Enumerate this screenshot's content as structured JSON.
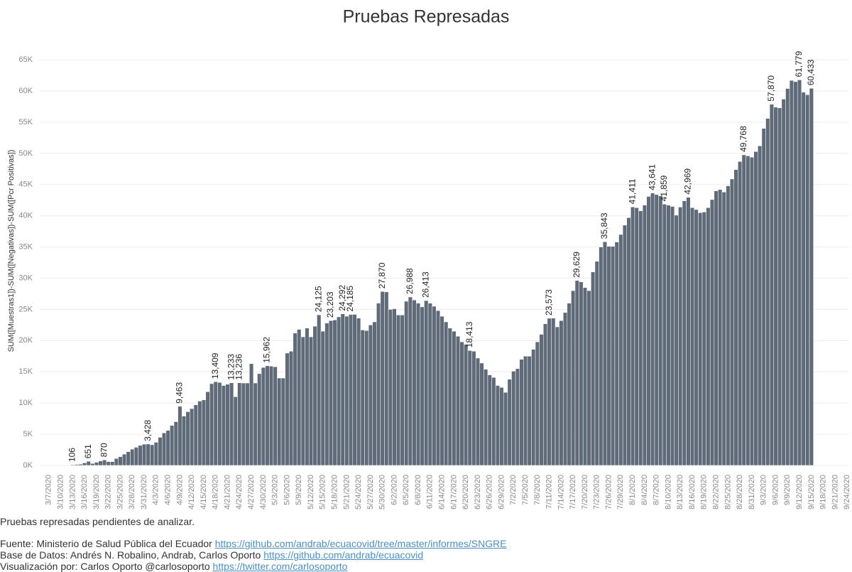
{
  "chart_data": {
    "type": "bar",
    "title": "Pruebas Represadas",
    "y_label": "SUM([Muestras1])-SUM([Negativas])-SUM([Pcr Positivas])",
    "color": "#5f6b78",
    "grid": true,
    "categories": [
      "3/7/2020",
      null,
      null,
      "3/10/2020",
      null,
      null,
      "3/13/2020",
      null,
      null,
      "3/16/2020",
      null,
      null,
      "3/19/2020",
      null,
      null,
      "3/22/2020",
      null,
      null,
      "3/25/2020",
      null,
      null,
      "3/28/2020",
      null,
      null,
      "3/31/2020",
      null,
      null,
      "4/3/2020",
      null,
      null,
      "4/6/2020",
      null,
      null,
      "4/9/2020",
      null,
      null,
      "4/12/2020",
      null,
      null,
      "4/15/2020",
      null,
      null,
      "4/18/2020",
      null,
      null,
      "4/21/2020",
      null,
      null,
      "4/24/2020",
      null,
      null,
      "4/27/2020",
      null,
      null,
      "4/30/2020",
      null,
      null,
      "5/3/2020",
      null,
      null,
      "5/6/2020",
      null,
      null,
      "5/9/2020",
      null,
      null,
      "5/12/2020",
      null,
      null,
      "5/15/2020",
      null,
      null,
      "5/18/2020",
      null,
      null,
      "5/21/2020",
      null,
      null,
      "5/24/2020",
      null,
      null,
      "5/27/2020",
      null,
      null,
      "5/30/2020",
      null,
      null,
      "6/2/2020",
      null,
      null,
      "6/5/2020",
      null,
      null,
      "6/8/2020",
      null,
      null,
      "6/11/2020",
      null,
      null,
      "6/14/2020",
      null,
      null,
      "6/17/2020",
      null,
      null,
      "6/20/2020",
      null,
      null,
      "6/23/2020",
      null,
      null,
      "6/26/2020",
      null,
      null,
      "6/29/2020",
      null,
      null,
      "7/2/2020",
      null,
      null,
      "7/5/2020",
      null,
      null,
      "7/8/2020",
      null,
      null,
      "7/11/2020",
      null,
      null,
      "7/14/2020",
      null,
      null,
      "7/17/2020",
      null,
      null,
      "7/20/2020",
      null,
      null,
      "7/23/2020",
      null,
      null,
      "7/26/2020",
      null,
      null,
      "7/29/2020",
      null,
      null,
      "8/1/2020",
      null,
      null,
      "8/4/2020",
      null,
      null,
      "8/7/2020",
      null,
      null,
      "8/10/2020",
      null,
      null,
      "8/13/2020",
      null,
      null,
      "8/16/2020",
      null,
      null,
      "8/19/2020",
      null,
      null,
      "8/22/2020",
      null,
      null,
      "8/25/2020",
      null,
      null,
      "8/28/2020",
      null,
      null,
      "8/31/2020",
      null,
      null,
      "9/3/2020",
      null,
      null,
      "9/6/2020",
      null,
      null,
      "9/9/2020",
      null,
      null,
      "9/12/2020",
      null,
      null,
      "9/15/2020",
      null,
      null,
      "9/18/2020",
      null,
      null,
      "9/21/2020",
      null,
      null,
      "9/24/2020"
    ],
    "values": [
      null,
      null,
      null,
      null,
      null,
      null,
      106,
      150,
      200,
      400,
      651,
      300,
      500,
      700,
      870,
      600,
      600,
      1100,
      1400,
      1800,
      2200,
      2600,
      2900,
      3200,
      3400,
      3428,
      3300,
      3700,
      4500,
      5200,
      5600,
      6400,
      7000,
      9463,
      7900,
      8600,
      9100,
      9700,
      10300,
      10500,
      11800,
      13100,
      13409,
      13300,
      12800,
      13000,
      13233,
      11000,
      13236,
      13200,
      13200,
      16300,
      13200,
      14700,
      15700,
      15962,
      15900,
      15800,
      14000,
      14000,
      18000,
      18300,
      21200,
      21800,
      20600,
      22000,
      20600,
      22300,
      24125,
      21500,
      22800,
      23203,
      23300,
      23800,
      24292,
      23900,
      24185,
      24200,
      23600,
      21700,
      21600,
      22500,
      23000,
      26000,
      27870,
      27800,
      25000,
      25100,
      24100,
      24100,
      26300,
      26988,
      26500,
      26000,
      25400,
      26413,
      26000,
      25500,
      24800,
      23900,
      23000,
      22000,
      21500,
      20700,
      19800,
      19400,
      18413,
      18300,
      17200,
      16400,
      15400,
      14500,
      14100,
      12800,
      12500,
      11700,
      13800,
      15100,
      15500,
      17000,
      17500,
      17500,
      18600,
      19800,
      21000,
      22700,
      23573,
      23600,
      22200,
      23200,
      24500,
      26000,
      28000,
      29629,
      29400,
      28500,
      28000,
      31000,
      32700,
      35000,
      35843,
      35100,
      35100,
      35800,
      37000,
      38500,
      39700,
      41411,
      41300,
      40800,
      41700,
      43100,
      43641,
      43400,
      43200,
      41859,
      41700,
      41500,
      40100,
      41400,
      42400,
      42969,
      41300,
      41000,
      40500,
      40600,
      41300,
      42600,
      44000,
      44200,
      43800,
      44800,
      45900,
      47400,
      48700,
      49768,
      49600,
      49400,
      50300,
      51200,
      54000,
      55600,
      57870,
      57400,
      57300,
      58700,
      60400,
      61700,
      61500,
      61779,
      59800,
      59400,
      60433,
      null,
      null,
      null,
      null,
      null,
      null,
      null,
      null,
      null
    ],
    "value_labels": [
      null,
      null,
      null,
      null,
      null,
      null,
      "106",
      null,
      null,
      null,
      "651",
      null,
      null,
      null,
      "870",
      null,
      null,
      null,
      null,
      null,
      null,
      null,
      null,
      null,
      null,
      "3,428",
      null,
      null,
      null,
      null,
      null,
      null,
      null,
      "9,463",
      null,
      null,
      null,
      null,
      null,
      null,
      null,
      null,
      "13,409",
      null,
      null,
      null,
      "13,233",
      null,
      "13,236",
      null,
      null,
      null,
      null,
      null,
      null,
      "15,962",
      null,
      null,
      null,
      null,
      null,
      null,
      null,
      null,
      null,
      null,
      null,
      null,
      "24,125",
      null,
      null,
      "23,203",
      null,
      null,
      "24,292",
      null,
      "24,185",
      null,
      null,
      null,
      null,
      null,
      null,
      null,
      "27,870",
      null,
      null,
      null,
      null,
      null,
      null,
      "26,988",
      null,
      null,
      null,
      "26,413",
      null,
      null,
      null,
      null,
      null,
      null,
      null,
      null,
      null,
      null,
      "18,413",
      null,
      null,
      null,
      null,
      null,
      null,
      null,
      null,
      null,
      null,
      null,
      null,
      null,
      null,
      null,
      null,
      null,
      null,
      null,
      "23,573",
      null,
      null,
      null,
      null,
      null,
      null,
      "29,629",
      null,
      null,
      null,
      null,
      null,
      null,
      "35,843",
      null,
      null,
      null,
      null,
      null,
      null,
      "41,411",
      null,
      null,
      null,
      null,
      "43,641",
      null,
      null,
      "41,859",
      null,
      null,
      null,
      null,
      null,
      "42,969",
      null,
      null,
      null,
      null,
      null,
      null,
      null,
      null,
      null,
      null,
      null,
      null,
      null,
      "49,768",
      null,
      null,
      null,
      null,
      null,
      null,
      "57,870",
      null,
      null,
      null,
      null,
      null,
      null,
      "61,779",
      null,
      null,
      "60,433",
      null,
      null,
      null,
      null,
      null,
      null,
      null,
      null,
      null
    ],
    "ylim": [
      -800,
      66500
    ],
    "yticks": [
      {
        "value": 0,
        "label": "0K"
      },
      {
        "value": 5000,
        "label": "5K"
      },
      {
        "value": 10000,
        "label": "10K"
      },
      {
        "value": 15000,
        "label": "15K"
      },
      {
        "value": 20000,
        "label": "20K"
      },
      {
        "value": 25000,
        "label": "25K"
      },
      {
        "value": 30000,
        "label": "30K"
      },
      {
        "value": 35000,
        "label": "35K"
      },
      {
        "value": 40000,
        "label": "40K"
      },
      {
        "value": 45000,
        "label": "45K"
      },
      {
        "value": 50000,
        "label": "50K"
      },
      {
        "value": 55000,
        "label": "55K"
      },
      {
        "value": 60000,
        "label": "60K"
      },
      {
        "value": 65000,
        "label": "65K"
      }
    ]
  },
  "footer": {
    "caption": "Pruebas represadas pendientes de analizar.",
    "lines": [
      {
        "text": "Fuente: Ministerio de Salud Pública del Ecuador",
        "link": "https://github.com/andrab/ecuacovid/tree/master/informes/SNGRE"
      },
      {
        "text": "Base de Datos: Andrés N. Robalino, Andrab, Carlos Oporto",
        "link": "https://github.com/andrab/ecuacovid"
      },
      {
        "text": "Visualización por: Carlos Oporto @carlosoporto",
        "link": "https://twitter.com/carlosoporto"
      }
    ]
  }
}
